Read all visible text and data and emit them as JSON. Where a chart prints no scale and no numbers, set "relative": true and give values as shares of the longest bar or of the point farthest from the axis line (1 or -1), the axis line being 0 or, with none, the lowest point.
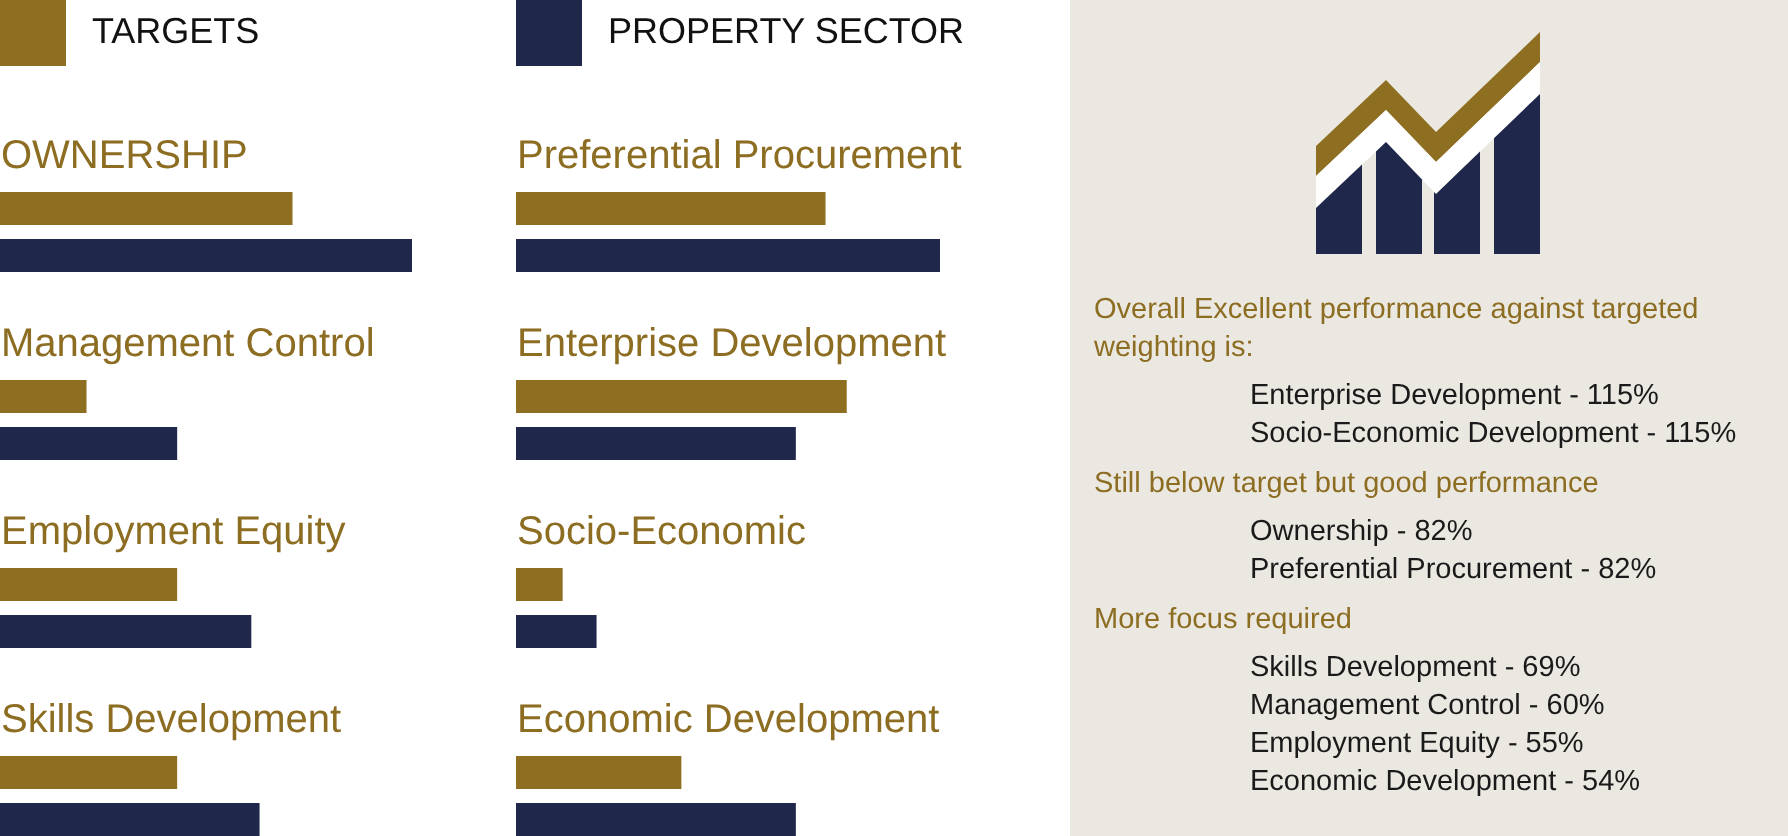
{
  "chart_data": [
    {
      "type": "bar",
      "orientation": "horizontal",
      "relative": true,
      "legend": "top",
      "categories": [
        "OWNERSHIP",
        "Management Control",
        "Employment Equity",
        "Skills Development"
      ],
      "series": [
        {
          "name": "TARGETS",
          "color": "#8e6f21",
          "values": [
            0.71,
            0.21,
            0.43,
            0.43
          ]
        },
        {
          "color": "#1f284b",
          "values": [
            1,
            0.43,
            0.61,
            0.63
          ]
        }
      ]
    },
    {
      "type": "bar",
      "orientation": "horizontal",
      "relative": true,
      "legend": "top",
      "categories": [
        "Preferential Procurement",
        "Enterprise Development",
        "Socio-Economic",
        "Economic Development"
      ],
      "series": [
        {
          "color": "#8e6f21",
          "values": [
            0.73,
            0.78,
            0.11,
            0.39
          ]
        },
        {
          "name": "PROPERTY SECTOR",
          "color": "#1f284b",
          "values": [
            1,
            0.66,
            0.19,
            0.66
          ]
        }
      ]
    },
    {
      "type": "other",
      "title": "Overall Excellent performance against targeted weighting is:",
      "annotations": [
        "Enterprise Development - 115%",
        "Socio-Economic Development - 115%"
      ]
    },
    {
      "type": "other",
      "title": "Still below target but good performance",
      "annotations": [
        "Ownership - 82%",
        "Preferential Procurement - 82%"
      ]
    },
    {
      "type": "other",
      "title": "More focus required",
      "annotations": [
        "Skills Development - 69%",
        "Management Control - 60%",
        "Employment Equity - 55%",
        "Economic Development - 54%"
      ]
    }
  ]
}
